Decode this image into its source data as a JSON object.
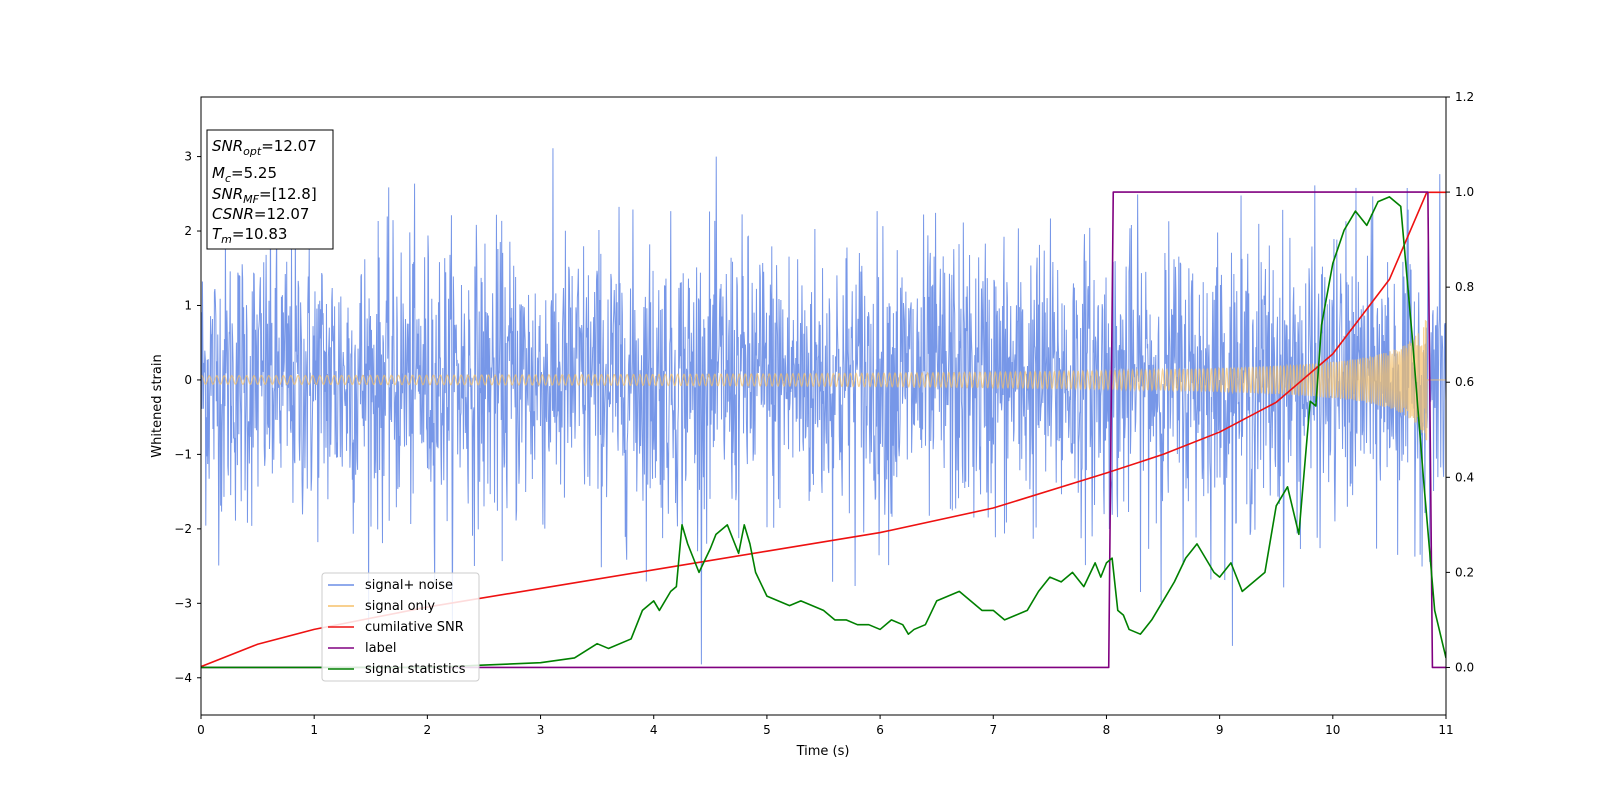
{
  "chart_data": {
    "type": "line",
    "xlabel": "Time (s)",
    "ylabel": "Whitened strain",
    "xlim": [
      0,
      11
    ],
    "ylim_left": [
      -4.5,
      3.8
    ],
    "ylim_right": [
      -0.1,
      1.2
    ],
    "x_ticks": [
      0,
      1,
      2,
      3,
      4,
      5,
      6,
      7,
      8,
      9,
      10,
      11
    ],
    "x_tick_labels": [
      "0",
      "1",
      "2",
      "3",
      "4",
      "5",
      "6",
      "7",
      "8",
      "9",
      "10",
      "11"
    ],
    "y_left_ticks": [
      3,
      2,
      1,
      0,
      -1,
      -2,
      -3,
      -4
    ],
    "y_left_tick_labels": [
      "3",
      "2",
      "1",
      "0",
      "−1",
      "−2",
      "−3",
      "−4"
    ],
    "y_right_ticks": [
      1.2,
      1.0,
      0.8,
      0.6,
      0.4,
      0.2,
      0.0
    ],
    "y_right_tick_labels": [
      "1.2",
      "1.0",
      "0.8",
      "0.6",
      "0.4",
      "0.2",
      "0.0"
    ],
    "grid": false,
    "legend_position": "lower-left",
    "annotation": {
      "snr_opt": "=12.07",
      "mc": "=5.25",
      "snr_mf": "=[12.8]",
      "csnr": "=12.07",
      "tm": "=10.83"
    },
    "series": [
      {
        "name": "signal+ noise",
        "color": "#6b8ee6",
        "axis": "left",
        "kind": "noise",
        "amplitude_range": [
          -4.2,
          3.45
        ]
      },
      {
        "name": "signal only",
        "color": "#f5c06a",
        "axis": "left",
        "kind": "chirp",
        "merger_time": 10.83,
        "peak_amplitude": 0.85
      },
      {
        "name": "cumilative SNR",
        "color": "#ee1111",
        "axis": "left",
        "x": [
          0,
          0.5,
          1,
          2,
          3,
          4,
          5,
          6,
          7,
          8,
          8.5,
          9,
          9.5,
          10,
          10.5,
          10.83,
          11
        ],
        "y": [
          -3.85,
          -3.55,
          -3.35,
          -3.05,
          -2.8,
          -2.55,
          -2.3,
          -2.05,
          -1.72,
          -1.25,
          -1.0,
          -0.7,
          -0.3,
          0.35,
          1.35,
          2.52,
          2.52
        ]
      },
      {
        "name": "label",
        "color": "#800080",
        "axis": "right",
        "x": [
          0,
          8.02,
          8.06,
          10.84,
          10.88,
          11
        ],
        "y": [
          0,
          0,
          1,
          1,
          0,
          0
        ]
      },
      {
        "name": "signal statistics",
        "color": "#008000",
        "axis": "right",
        "x": [
          0,
          0.5,
          1,
          1.5,
          2,
          2.5,
          3,
          3.3,
          3.5,
          3.6,
          3.8,
          3.9,
          4.0,
          4.05,
          4.15,
          4.2,
          4.25,
          4.3,
          4.4,
          4.5,
          4.55,
          4.65,
          4.75,
          4.8,
          4.85,
          4.9,
          5.0,
          5.1,
          5.2,
          5.3,
          5.4,
          5.5,
          5.6,
          5.7,
          5.8,
          5.9,
          6.0,
          6.1,
          6.2,
          6.25,
          6.3,
          6.4,
          6.5,
          6.6,
          6.7,
          6.8,
          6.9,
          7.0,
          7.1,
          7.2,
          7.3,
          7.4,
          7.5,
          7.6,
          7.7,
          7.8,
          7.9,
          7.95,
          8.0,
          8.05,
          8.1,
          8.15,
          8.2,
          8.3,
          8.4,
          8.5,
          8.6,
          8.7,
          8.8,
          8.9,
          8.95,
          9.0,
          9.1,
          9.2,
          9.3,
          9.4,
          9.5,
          9.6,
          9.7,
          9.8,
          9.85,
          9.9,
          10.0,
          10.1,
          10.2,
          10.3,
          10.4,
          10.5,
          10.6,
          10.7,
          10.8,
          10.9,
          11.0
        ],
        "y": [
          0.0,
          0.0,
          0.0,
          0.0,
          0.0,
          0.005,
          0.01,
          0.02,
          0.05,
          0.04,
          0.06,
          0.12,
          0.14,
          0.12,
          0.16,
          0.17,
          0.3,
          0.26,
          0.2,
          0.25,
          0.28,
          0.3,
          0.24,
          0.3,
          0.26,
          0.2,
          0.15,
          0.14,
          0.13,
          0.14,
          0.13,
          0.12,
          0.1,
          0.1,
          0.09,
          0.09,
          0.08,
          0.1,
          0.09,
          0.07,
          0.08,
          0.09,
          0.14,
          0.15,
          0.16,
          0.14,
          0.12,
          0.12,
          0.1,
          0.11,
          0.12,
          0.16,
          0.19,
          0.18,
          0.2,
          0.17,
          0.22,
          0.19,
          0.22,
          0.23,
          0.12,
          0.11,
          0.08,
          0.07,
          0.1,
          0.14,
          0.18,
          0.23,
          0.26,
          0.22,
          0.2,
          0.19,
          0.22,
          0.16,
          0.18,
          0.2,
          0.34,
          0.38,
          0.28,
          0.56,
          0.55,
          0.72,
          0.85,
          0.92,
          0.96,
          0.93,
          0.98,
          0.99,
          0.97,
          0.7,
          0.4,
          0.12,
          0.02
        ]
      }
    ]
  }
}
